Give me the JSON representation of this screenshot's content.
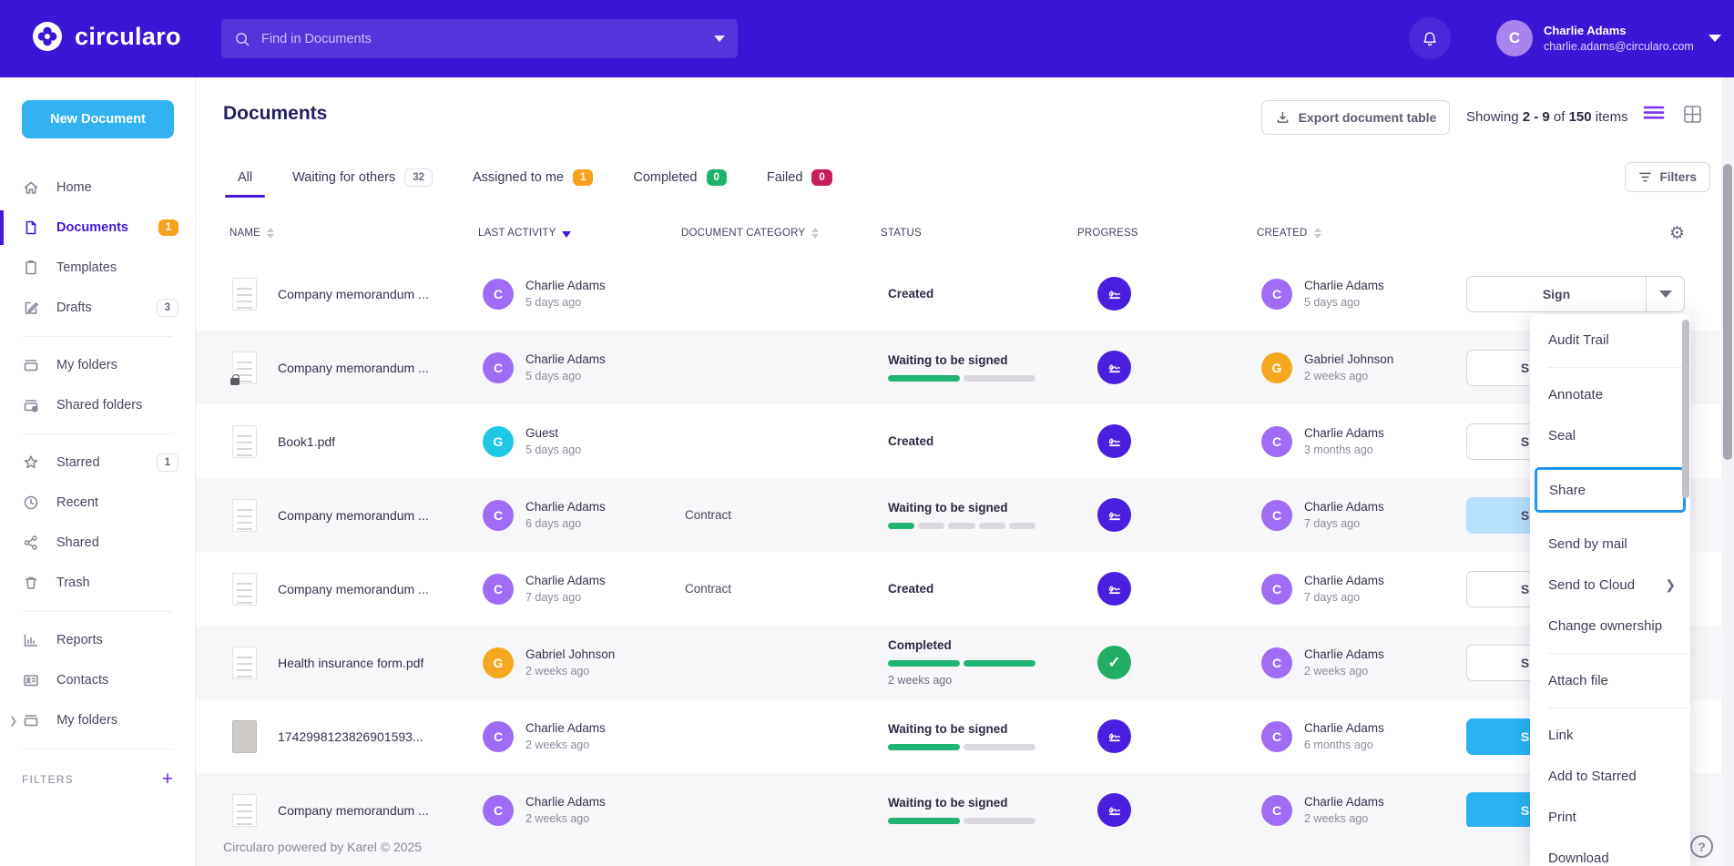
{
  "topbar": {
    "brand": "circularo",
    "search_placeholder": "Find in Documents",
    "user": {
      "initial": "C",
      "name": "Charlie Adams",
      "email": "charlie.adams@circularo.com"
    }
  },
  "sidebar": {
    "new_document_label": "New Document",
    "items": [
      {
        "label": "Home",
        "icon": "home-icon"
      },
      {
        "label": "Documents",
        "icon": "document-icon",
        "badge": "1",
        "active": true
      },
      {
        "label": "Templates",
        "icon": "template-icon"
      },
      {
        "label": "Drafts",
        "icon": "draft-icon",
        "badge": "3"
      },
      {
        "label": "My folders",
        "icon": "folder-icon"
      },
      {
        "label": "Shared folders",
        "icon": "shared-folder-icon"
      },
      {
        "label": "Starred",
        "icon": "star-icon",
        "badge": "1"
      },
      {
        "label": "Recent",
        "icon": "clock-icon"
      },
      {
        "label": "Shared",
        "icon": "share-icon"
      },
      {
        "label": "Trash",
        "icon": "trash-icon"
      },
      {
        "label": "Reports",
        "icon": "reports-icon"
      },
      {
        "label": "Contacts",
        "icon": "contacts-icon"
      },
      {
        "label": "My folders",
        "icon": "folder-icon",
        "expandable": true
      }
    ],
    "filters_label": "FILTERS"
  },
  "header": {
    "title": "Documents",
    "export_label": "Export document table",
    "showing": {
      "prefix": "Showing",
      "range": "2 - 9",
      "of": "of",
      "total": "150",
      "suffix": "items"
    }
  },
  "tabs": [
    {
      "label": "All",
      "active": true
    },
    {
      "label": "Waiting for others",
      "badge": "32",
      "badge_style": "neutral"
    },
    {
      "label": "Assigned to me",
      "badge": "1",
      "badge_style": "orange"
    },
    {
      "label": "Completed",
      "badge": "0",
      "badge_style": "green"
    },
    {
      "label": "Failed",
      "badge": "0",
      "badge_style": "red"
    }
  ],
  "filters_button_label": "Filters",
  "table": {
    "columns": [
      "NAME",
      "LAST ACTIVITY",
      "DOCUMENT CATEGORY",
      "STATUS",
      "PROGRESS",
      "CREATED"
    ],
    "sort": {
      "column": "LAST ACTIVITY",
      "direction": "desc"
    },
    "rows": [
      {
        "name": "Company memorandum ...",
        "activity": {
          "initial": "C",
          "color": "purple",
          "name": "Charlie Adams",
          "time": "5 days ago"
        },
        "category": "",
        "status": {
          "label": "Created"
        },
        "progress": "signature",
        "created": {
          "initial": "C",
          "color": "purple",
          "name": "Charlie Adams",
          "time": "5 days ago"
        },
        "action_label": "Sign",
        "action_style": "split"
      },
      {
        "name": "Company memorandum ...",
        "locked": true,
        "activity": {
          "initial": "C",
          "color": "purple",
          "name": "Charlie Adams",
          "time": "5 days ago"
        },
        "category": "",
        "status": {
          "label": "Waiting to be signed",
          "bar_filled": 1,
          "bar_total": 2
        },
        "progress": "signature",
        "created": {
          "initial": "G",
          "color": "orange",
          "name": "Gabriel Johnson",
          "time": "2 weeks ago"
        },
        "action_label": "Sign",
        "action_style": "white"
      },
      {
        "name": "Book1.pdf",
        "activity": {
          "initial": "G",
          "color": "cyan",
          "name": "Guest",
          "time": "5 days ago"
        },
        "category": "",
        "status": {
          "label": "Created"
        },
        "progress": "signature",
        "created": {
          "initial": "C",
          "color": "purple",
          "name": "Charlie Adams",
          "time": "3 months ago"
        },
        "action_label": "Sign",
        "action_style": "white"
      },
      {
        "name": "Company memorandum ...",
        "activity": {
          "initial": "C",
          "color": "purple",
          "name": "Charlie Adams",
          "time": "6 days ago"
        },
        "category": "Contract",
        "status": {
          "label": "Waiting to be signed",
          "bar_filled": 1,
          "bar_total": 5
        },
        "progress": "signature",
        "created": {
          "initial": "C",
          "color": "purple",
          "name": "Charlie Adams",
          "time": "7 days ago"
        },
        "action_label": "Sign",
        "action_style": "selected",
        "selected": true
      },
      {
        "name": "Company memorandum ...",
        "activity": {
          "initial": "C",
          "color": "purple",
          "name": "Charlie Adams",
          "time": "7 days ago"
        },
        "category": "Contract",
        "status": {
          "label": "Created"
        },
        "progress": "signature",
        "created": {
          "initial": "C",
          "color": "purple",
          "name": "Charlie Adams",
          "time": "7 days ago"
        },
        "action_label": "Sign",
        "action_style": "white"
      },
      {
        "name": "Health insurance form.pdf",
        "activity": {
          "initial": "G",
          "color": "orange",
          "name": "Gabriel Johnson",
          "time": "2 weeks ago"
        },
        "category": "",
        "status": {
          "label": "Completed",
          "bar_filled": 2,
          "bar_total": 2,
          "time": "2 weeks ago"
        },
        "progress": "completed-check",
        "created": {
          "initial": "C",
          "color": "purple",
          "name": "Charlie Adams",
          "time": "2 weeks ago"
        },
        "action_label": "Sign",
        "action_style": "white"
      },
      {
        "name": "1742998123826901593...",
        "thumb_style": "photo",
        "activity": {
          "initial": "C",
          "color": "purple",
          "name": "Charlie Adams",
          "time": "2 weeks ago"
        },
        "category": "",
        "status": {
          "label": "Waiting to be signed",
          "bar_filled": 1,
          "bar_total": 2
        },
        "progress": "signature",
        "created": {
          "initial": "C",
          "color": "purple",
          "name": "Charlie Adams",
          "time": "6 months ago"
        },
        "action_label": "Sign",
        "action_style": "primary"
      },
      {
        "name": "Company memorandum ...",
        "activity": {
          "initial": "C",
          "color": "purple",
          "name": "Charlie Adams",
          "time": "2 weeks ago"
        },
        "category": "",
        "status": {
          "label": "Waiting to be signed",
          "bar_filled": 1,
          "bar_total": 2
        },
        "progress": "signature",
        "created": {
          "initial": "C",
          "color": "purple",
          "name": "Charlie Adams",
          "time": "2 weeks ago"
        },
        "action_label": "Sign",
        "action_style": "primary"
      }
    ]
  },
  "context_menu": {
    "items": [
      "Audit Trail",
      "Annotate",
      "Seal",
      "Share",
      "Send by mail",
      "Send to Cloud",
      "Change ownership",
      "Attach file",
      "Link",
      "Add to Starred",
      "Print",
      "Download"
    ],
    "highlighted_item": "Share",
    "submenu_item": "Send to Cloud"
  },
  "footer": {
    "text": "Circularo powered by Karel © 2025",
    "help_label": "?"
  },
  "colors": {
    "topbar_purple": "#3c16d6",
    "accent_purple": "#4617d9",
    "primary_blue": "#32b2f1",
    "green": "#21b573",
    "orange": "#f6a21c",
    "red": "#c81e5b",
    "avatar_purple": "#a06cf5",
    "avatar_orange": "#f5a81f",
    "avatar_cyan": "#1ec9e8",
    "progress_circle_purple": "#4b1fdf",
    "share_highlight_blue": "#2196f3"
  }
}
